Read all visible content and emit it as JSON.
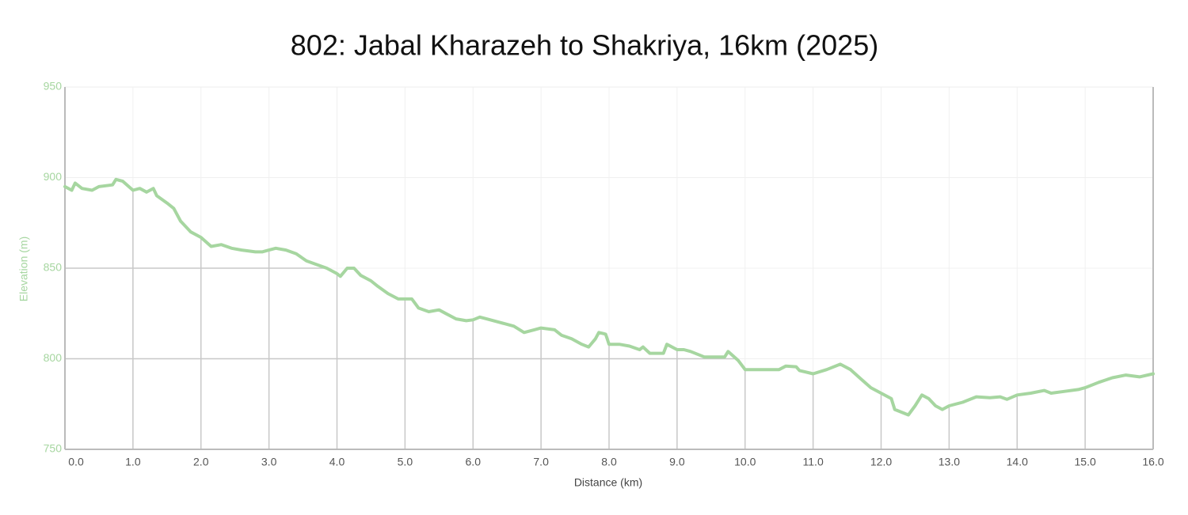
{
  "chart_data": {
    "type": "line",
    "title": "802: Jabal Kharazeh to Shakriya, 16km (2025)",
    "x_label": "Distance (km)",
    "y_label": "Elevation (m)",
    "color": "#a6d6a0",
    "grid": true,
    "xlim": [
      0,
      16
    ],
    "ylim": [
      750,
      950
    ],
    "xticks": [
      {
        "value": 0,
        "label": "0.0"
      },
      {
        "value": 1,
        "label": "1.0"
      },
      {
        "value": 2,
        "label": "2.0"
      },
      {
        "value": 3,
        "label": "3.0"
      },
      {
        "value": 4,
        "label": "4.0"
      },
      {
        "value": 5,
        "label": "5.0"
      },
      {
        "value": 6,
        "label": "6.0"
      },
      {
        "value": 7,
        "label": "7.0"
      },
      {
        "value": 8,
        "label": "8.0"
      },
      {
        "value": 9,
        "label": "9.0"
      },
      {
        "value": 10,
        "label": "10.0"
      },
      {
        "value": 11,
        "label": "11.0"
      },
      {
        "value": 12,
        "label": "12.0"
      },
      {
        "value": 13,
        "label": "13.0"
      },
      {
        "value": 14,
        "label": "14.0"
      },
      {
        "value": 15,
        "label": "15.0"
      },
      {
        "value": 16,
        "label": "16.0"
      }
    ],
    "yticks": [
      750,
      800,
      850,
      900,
      950
    ],
    "x": [
      0,
      0.1,
      0.15,
      0.25,
      0.4,
      0.5,
      0.7,
      0.75,
      0.85,
      1.0,
      1.1,
      1.2,
      1.3,
      1.35,
      1.5,
      1.6,
      1.7,
      1.85,
      2.0,
      2.15,
      2.3,
      2.45,
      2.6,
      2.8,
      2.9,
      3.0,
      3.1,
      3.25,
      3.4,
      3.55,
      3.7,
      3.85,
      4.0,
      4.05,
      4.15,
      4.25,
      4.35,
      4.5,
      4.6,
      4.75,
      4.9,
      5.0,
      5.1,
      5.2,
      5.35,
      5.5,
      5.6,
      5.75,
      5.9,
      6.0,
      6.1,
      6.2,
      6.4,
      6.6,
      6.75,
      6.9,
      7.0,
      7.2,
      7.3,
      7.45,
      7.6,
      7.7,
      7.8,
      7.85,
      7.95,
      8.0,
      8.15,
      8.3,
      8.45,
      8.5,
      8.6,
      8.8,
      8.85,
      9.0,
      9.1,
      9.2,
      9.4,
      9.6,
      9.7,
      9.75,
      9.9,
      10.0,
      10.2,
      10.4,
      10.5,
      10.6,
      10.75,
      10.8,
      11.0,
      11.2,
      11.4,
      11.55,
      11.7,
      11.85,
      12.0,
      12.15,
      12.2,
      12.4,
      12.5,
      12.6,
      12.7,
      12.8,
      12.9,
      13.0,
      13.2,
      13.4,
      13.6,
      13.75,
      13.85,
      14.0,
      14.2,
      14.4,
      14.5,
      14.7,
      14.9,
      15.0,
      15.2,
      15.4,
      15.6,
      15.8,
      16.0
    ],
    "values": [
      895,
      893,
      897,
      894,
      893,
      895,
      896,
      899,
      898,
      893,
      894,
      892,
      894,
      890,
      886,
      883,
      876,
      870,
      867,
      862,
      863,
      861,
      860,
      859,
      859,
      860,
      861,
      860,
      858,
      854,
      852,
      850,
      847,
      845.5,
      850,
      850,
      846,
      843,
      840,
      836,
      833,
      833,
      833,
      828,
      826,
      827,
      825,
      822,
      821,
      821.5,
      823,
      822,
      820,
      818,
      814.5,
      816,
      817,
      816,
      813,
      811,
      808,
      806.5,
      811,
      814.5,
      813.6,
      808,
      808,
      807,
      805,
      806.5,
      803,
      803,
      808,
      805,
      805,
      804,
      801,
      801,
      801,
      804,
      799,
      794,
      794,
      794,
      794,
      796,
      795.6,
      793.5,
      791.7,
      794,
      797,
      794,
      789,
      784,
      781,
      778,
      772,
      769,
      774,
      780,
      778,
      774,
      772,
      774,
      776,
      779,
      778.5,
      779,
      777.6,
      780,
      781,
      782.5,
      781,
      782,
      783,
      784,
      787,
      789.5,
      791,
      790,
      791.7
    ]
  }
}
